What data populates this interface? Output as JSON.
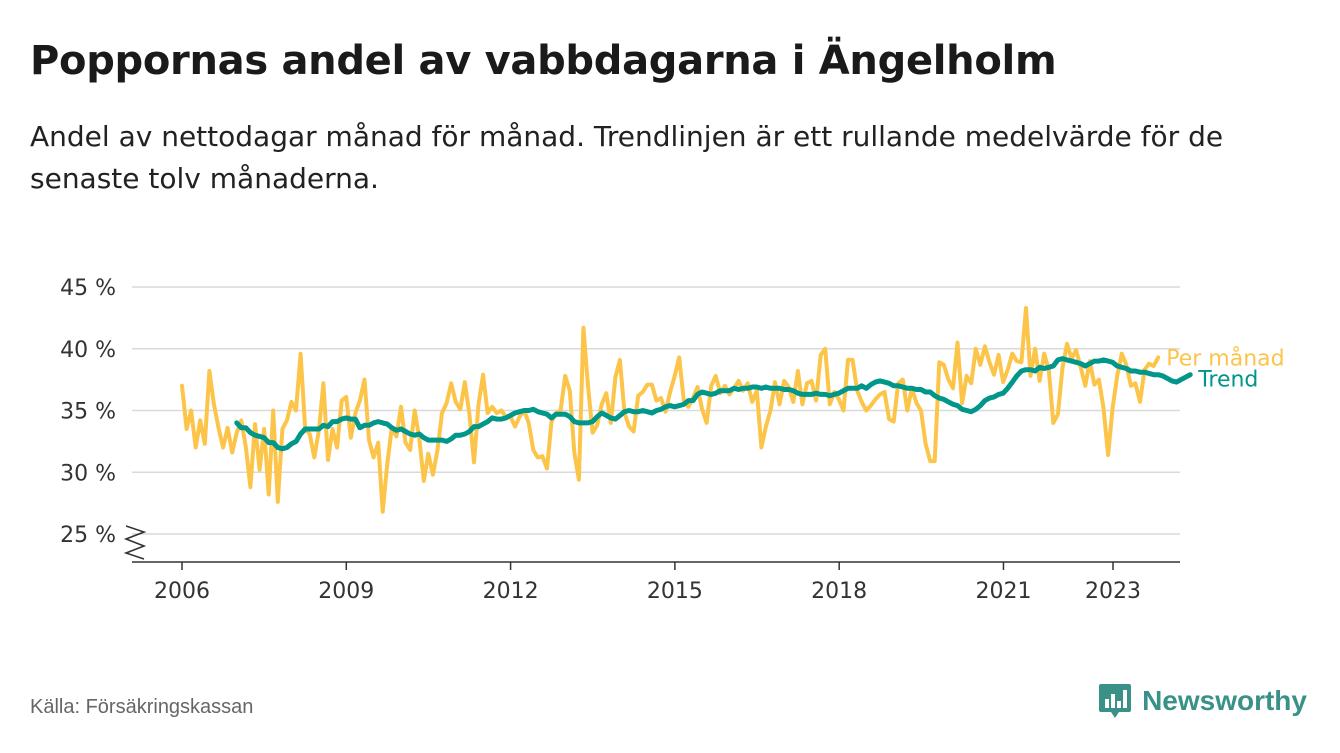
{
  "header": {
    "title": "Poppornas andel av vabbdagarna i Ängelholm",
    "subtitle": "Andel av nettodagar månad för månad. Trendlinjen är ett rullande medelvärde för de senaste tolv månaderna."
  },
  "footer": {
    "source": "Källa: Försäkringskassan",
    "brand": "Newsworthy",
    "brand_icon": "bar-chart-speech-bubble-icon"
  },
  "colors": {
    "monthly": "#fcc54a",
    "trend": "#00968a",
    "grid": "#d9d9d9",
    "axis": "#333333",
    "text": "#333333"
  },
  "chart_data": {
    "type": "line",
    "x_unit": "year (decimal)",
    "x_start": 2006.0,
    "x_step": 0.0833,
    "ylim": [
      24,
      46
    ],
    "y_ticks": [
      25,
      30,
      35,
      40,
      45
    ],
    "y_tick_labels": [
      "25 %",
      "30 %",
      "35 %",
      "40 %",
      "45 %"
    ],
    "x_ticks": [
      2006,
      2009,
      2012,
      2015,
      2018,
      2021,
      2023
    ],
    "x_tick_labels": [
      "2006",
      "2009",
      "2012",
      "2015",
      "2018",
      "2021",
      "2023"
    ],
    "grid": "horizontal",
    "y_axis_break": true,
    "series": [
      {
        "name": "Per månad",
        "values": [
          37,
          33.5,
          35,
          32,
          34.2,
          32.3,
          38.2,
          35.5,
          33.6,
          32,
          33.6,
          31.6,
          33.2,
          34.2,
          32,
          28.8,
          33.9,
          30.2,
          33.5,
          28.2,
          35,
          27.6,
          33.5,
          34.2,
          35.7,
          35,
          39.6,
          33.5,
          33.1,
          31.2,
          33.4,
          37.2,
          31,
          33.5,
          32,
          35.8,
          36.1,
          32.8,
          34.8,
          35.8,
          37.5,
          32.6,
          31.2,
          32.4,
          26.8,
          30.7,
          33.6,
          32.9,
          35.3,
          32.4,
          31.8,
          35,
          32.8,
          29.3,
          31.5,
          29.8,
          31.8,
          34.8,
          35.6,
          37.2,
          35.7,
          35.1,
          37.3,
          34.7,
          30.8,
          35.5,
          37.9,
          34.8,
          35.3,
          34.8,
          35,
          34.5,
          34.5,
          33.7,
          34.5,
          35,
          34,
          31.8,
          31.2,
          31.3,
          30.3,
          34.1,
          34.8,
          35,
          37.8,
          36.6,
          31.6,
          29.4,
          41.7,
          37,
          33.2,
          33.8,
          35.5,
          36.4,
          34,
          37.7,
          39.1,
          34.8,
          33.7,
          33.3,
          36.2,
          36.5,
          37.1,
          37.1,
          35.8,
          36,
          34.9,
          36.5,
          37.8,
          39.3,
          35.8,
          35.3,
          36,
          36.9,
          35.1,
          34,
          37,
          37.8,
          36.4,
          37,
          36.3,
          36.8,
          37.4,
          36.6,
          37.2,
          35.7,
          36.6,
          32,
          33.7,
          35,
          37.3,
          35.5,
          37.4,
          36.9,
          35.7,
          38.2,
          35.5,
          37.2,
          37.4,
          35.8,
          39.5,
          40,
          35.5,
          36.5,
          35.9,
          35,
          39.1,
          39.1,
          36.6,
          35.7,
          35,
          35.4,
          35.9,
          36.3,
          36.5,
          34.3,
          34.1,
          37.2,
          37.5,
          35,
          36.8,
          35.6,
          35,
          32.3,
          30.9,
          30.9,
          38.9,
          38.7,
          37.5,
          36.8,
          40.5,
          35.6,
          37.8,
          37.2,
          40,
          38.7,
          40.2,
          38.9,
          37.9,
          39.5,
          37.3,
          38.3,
          39.6,
          39,
          38.9,
          43.3,
          37.8,
          40,
          37.4,
          39.6,
          38.3,
          34,
          34.7,
          38.4,
          40.4,
          39.2,
          39.9,
          38.5,
          37,
          39,
          37.1,
          37.5,
          35.2,
          31.4,
          35.2,
          37.8,
          39.6,
          38.7,
          37,
          37.2,
          35.7,
          38.3,
          38.8,
          38.6,
          39.3
        ]
      },
      {
        "name": "Trend",
        "x_start": 2007.0,
        "values": [
          34,
          33.6,
          33.6,
          33.2,
          33,
          32.9,
          32.8,
          32.4,
          32.4,
          32,
          31.9,
          32,
          32.3,
          32.5,
          33.1,
          33.5,
          33.5,
          33.5,
          33.5,
          33.8,
          33.7,
          34.1,
          34.1,
          34.3,
          34.4,
          34.3,
          34.3,
          33.6,
          33.8,
          33.8,
          34,
          34.1,
          34,
          33.9,
          33.6,
          33.4,
          33.5,
          33.3,
          33.1,
          33,
          33.1,
          32.8,
          32.6,
          32.6,
          32.6,
          32.6,
          32.5,
          32.7,
          33,
          33,
          33.1,
          33.3,
          33.7,
          33.7,
          33.9,
          34.1,
          34.4,
          34.3,
          34.3,
          34.4,
          34.6,
          34.8,
          34.9,
          35,
          35,
          35.1,
          34.9,
          34.8,
          34.7,
          34.4,
          34.7,
          34.7,
          34.7,
          34.5,
          34.1,
          34,
          34,
          34,
          34.1,
          34.5,
          34.8,
          34.6,
          34.4,
          34.3,
          34.6,
          34.9,
          35,
          34.9,
          34.9,
          35,
          34.9,
          34.8,
          35,
          35.1,
          35.3,
          35.4,
          35.3,
          35.4,
          35.5,
          35.8,
          35.8,
          36.3,
          36.5,
          36.4,
          36.3,
          36.4,
          36.6,
          36.6,
          36.6,
          36.8,
          36.7,
          36.8,
          36.8,
          36.9,
          36.9,
          36.8,
          36.9,
          36.8,
          36.8,
          36.8,
          36.7,
          36.7,
          36.6,
          36.4,
          36.3,
          36.3,
          36.3,
          36.4,
          36.3,
          36.3,
          36.2,
          36.3,
          36.4,
          36.6,
          36.8,
          36.8,
          36.8,
          37,
          36.8,
          37.1,
          37.3,
          37.4,
          37.3,
          37.2,
          37,
          37,
          36.9,
          36.8,
          36.8,
          36.7,
          36.7,
          36.5,
          36.5,
          36.2,
          36,
          35.9,
          35.7,
          35.5,
          35.4,
          35.1,
          35,
          34.9,
          35.1,
          35.4,
          35.8,
          36,
          36.1,
          36.3,
          36.4,
          36.8,
          37.3,
          37.8,
          38.2,
          38.3,
          38.3,
          38.2,
          38.5,
          38.4,
          38.5,
          38.6,
          39.1,
          39.2,
          39.1,
          39,
          38.9,
          38.8,
          38.6,
          38.8,
          39,
          39,
          39.1,
          39,
          38.9,
          38.6,
          38.5,
          38.4,
          38.2,
          38.2,
          38.1,
          38.1,
          38,
          37.9,
          37.9,
          37.8,
          37.6,
          37.4,
          37.3,
          37.5,
          37.7,
          37.9
        ]
      }
    ]
  }
}
